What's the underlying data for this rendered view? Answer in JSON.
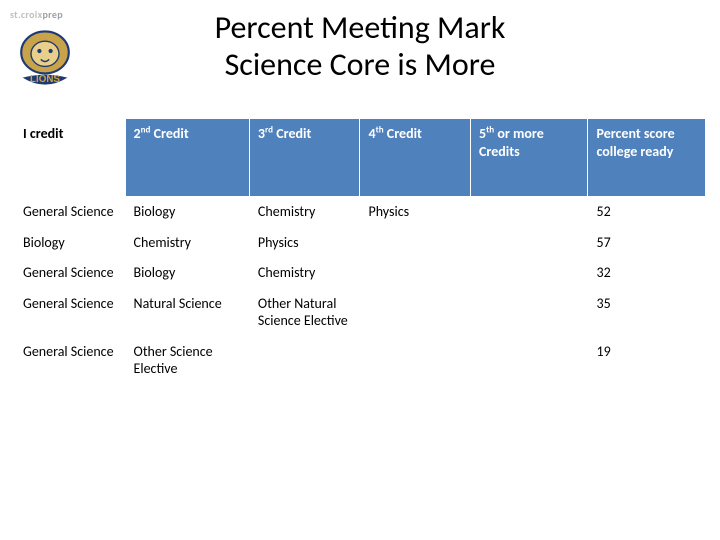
{
  "brand": {
    "line1": "st.croix",
    "line2": "prep",
    "team": "LIONS"
  },
  "title_line1": "Percent Meeting Mark",
  "title_line2": "Science Core is More",
  "table": {
    "header_bg": "#4f81bd",
    "header_fg": "#ffffff",
    "border_color": "#ffffff",
    "columns": [
      {
        "label": "I credit",
        "plain": true
      },
      {
        "label_html": "2<sup>nd</sup> Credit"
      },
      {
        "label_html": "3<sup>rd</sup> Credit"
      },
      {
        "label_html": "4<sup>th</sup> Credit"
      },
      {
        "label_html": "5<sup>th</sup> or more Credits"
      },
      {
        "label": "Percent score college ready"
      }
    ],
    "rows": [
      [
        "General Science",
        "Biology",
        "Chemistry",
        "Physics",
        "",
        "52"
      ],
      [
        "Biology",
        "Chemistry",
        "Physics",
        "",
        "",
        "57"
      ],
      [
        "General Science",
        "Biology",
        "Chemistry",
        "",
        "",
        "32"
      ],
      [
        "General Science",
        "Natural Science",
        "Other Natural Science Elective",
        "",
        "",
        "35"
      ],
      [
        "General Science",
        "Other Science Elective",
        "",
        "",
        "",
        "19"
      ]
    ]
  }
}
